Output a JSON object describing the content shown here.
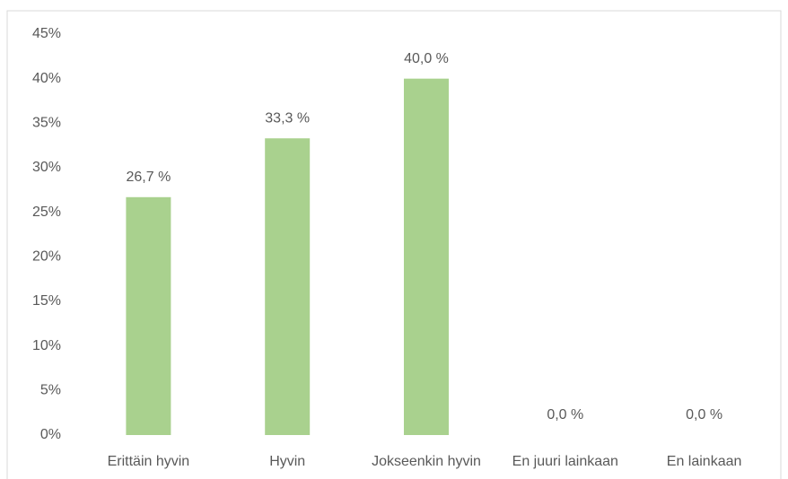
{
  "chart_data": {
    "type": "bar",
    "categories": [
      "Erittäin hyvin",
      "Hyvin",
      "Jokseenkin hyvin",
      "En juuri lainkaan",
      "En lainkaan"
    ],
    "values": [
      26.7,
      33.3,
      40.0,
      0.0,
      0.0
    ],
    "value_labels": [
      "26,7 %",
      "33,3 %",
      "40,0 %",
      "0,0 %",
      "0,0 %"
    ],
    "color": "#a9d18e",
    "ylim": [
      0,
      45
    ],
    "yticks": [
      {
        "value": 0,
        "label": "0%"
      },
      {
        "value": 5,
        "label": "5%"
      },
      {
        "value": 10,
        "label": "10%"
      },
      {
        "value": 15,
        "label": "15%"
      },
      {
        "value": 20,
        "label": "20%"
      },
      {
        "value": 25,
        "label": "25%"
      },
      {
        "value": 30,
        "label": "30%"
      },
      {
        "value": 35,
        "label": "35%"
      },
      {
        "value": 40,
        "label": "40%"
      },
      {
        "value": 45,
        "label": "45%"
      }
    ],
    "grid": false
  }
}
